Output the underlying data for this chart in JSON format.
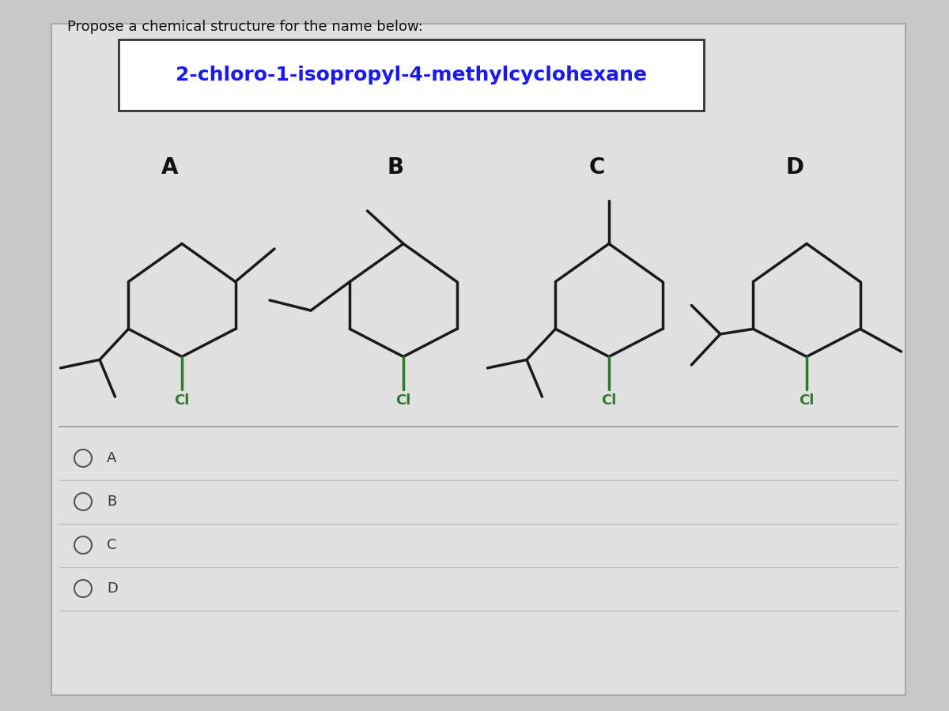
{
  "title": "Propose a chemical structure for the name below:",
  "compound_name": "2-chloro-1-isopropyl-4-methylcyclohexane",
  "bg_color": "#c8c8c8",
  "panel_color": "#e0e0e0",
  "line_color": "#1a1a1a",
  "cl_color": "#2d7a2d",
  "label_color": "#111111",
  "name_color": "#1a1aee",
  "radio_labels": [
    "A",
    "B",
    "C",
    "D"
  ]
}
